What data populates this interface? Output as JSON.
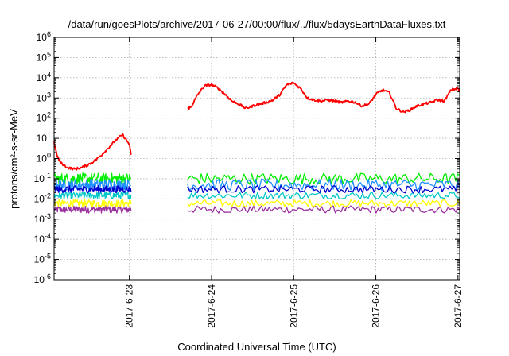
{
  "chart_data": {
    "type": "line",
    "title": "/data/run/goesPlots/archive/2017-06-27/00:00/flux/../flux/5daysEarthDataFluxes.txt",
    "xlabel": "Coordinated Universal Time (UTC)",
    "ylabel": "protons/cm²-s-sr-MeV",
    "yscale": "log",
    "ylim": [
      1e-06,
      1000000.0
    ],
    "xlim": [
      "2017-06-22T02:00",
      "2017-06-27T00:30"
    ],
    "grid": true,
    "data_gap": [
      "2017-06-23T00:30",
      "2017-06-23T17:00"
    ],
    "y_ticks": [
      {
        "base": "10",
        "exp": "-6"
      },
      {
        "base": "10",
        "exp": "-5"
      },
      {
        "base": "10",
        "exp": "-4"
      },
      {
        "base": "10",
        "exp": "-3"
      },
      {
        "base": "10",
        "exp": "-2"
      },
      {
        "base": "10",
        "exp": "-1"
      },
      {
        "base": "10",
        "exp": "0"
      },
      {
        "base": "10",
        "exp": "1"
      },
      {
        "base": "10",
        "exp": "2"
      },
      {
        "base": "10",
        "exp": "3"
      },
      {
        "base": "10",
        "exp": "4"
      },
      {
        "base": "10",
        "exp": "5"
      },
      {
        "base": "10",
        "exp": "6"
      }
    ],
    "x_ticks": [
      "2017-6-23",
      "2017-6-24",
      "2017-6-25",
      "2017-6-26",
      "2017-6-27"
    ],
    "series": [
      {
        "color": "#ff0000",
        "points": [
          [
            "2017-06-22T02:00",
            6
          ],
          [
            "2017-06-22T03:00",
            1.2
          ],
          [
            "2017-06-22T04:00",
            0.6
          ],
          [
            "2017-06-22T06:00",
            0.35
          ],
          [
            "2017-06-22T08:00",
            0.3
          ],
          [
            "2017-06-22T10:00",
            0.35
          ],
          [
            "2017-06-22T12:00",
            0.5
          ],
          [
            "2017-06-22T14:00",
            0.8
          ],
          [
            "2017-06-22T16:00",
            1.6
          ],
          [
            "2017-06-22T18:00",
            3.5
          ],
          [
            "2017-06-22T20:00",
            8
          ],
          [
            "2017-06-22T22:00",
            15
          ],
          [
            "2017-06-23T00:00",
            5
          ],
          [
            "2017-06-23T00:30",
            1.5
          ],
          null,
          [
            "2017-06-23T17:00",
            300
          ],
          [
            "2017-06-23T18:00",
            350
          ],
          [
            "2017-06-23T20:00",
            1500
          ],
          [
            "2017-06-23T22:00",
            4000
          ],
          [
            "2017-06-24T00:00",
            4500
          ],
          [
            "2017-06-24T02:00",
            3000
          ],
          [
            "2017-06-24T04:00",
            1500
          ],
          [
            "2017-06-24T06:00",
            700
          ],
          [
            "2017-06-24T08:00",
            500
          ],
          [
            "2017-06-24T10:00",
            300
          ],
          [
            "2017-06-24T12:00",
            400
          ],
          [
            "2017-06-24T14:00",
            500
          ],
          [
            "2017-06-24T16:00",
            600
          ],
          [
            "2017-06-24T18:00",
            800
          ],
          [
            "2017-06-24T20:00",
            1500
          ],
          [
            "2017-06-24T22:00",
            4500
          ],
          [
            "2017-06-25T00:00",
            5500
          ],
          [
            "2017-06-25T02:00",
            3000
          ],
          [
            "2017-06-25T04:00",
            1000
          ],
          [
            "2017-06-25T06:00",
            800
          ],
          [
            "2017-06-25T08:00",
            700
          ],
          [
            "2017-06-25T10:00",
            800
          ],
          [
            "2017-06-25T12:00",
            700
          ],
          [
            "2017-06-25T14:00",
            600
          ],
          [
            "2017-06-25T16:00",
            700
          ],
          [
            "2017-06-25T18:00",
            600
          ],
          [
            "2017-06-25T20:00",
            400
          ],
          [
            "2017-06-25T22:00",
            500
          ],
          [
            "2017-06-26T00:00",
            1500
          ],
          [
            "2017-06-26T02:00",
            2500
          ],
          [
            "2017-06-26T04:00",
            1800
          ],
          [
            "2017-06-26T06:00",
            300
          ],
          [
            "2017-06-26T08:00",
            200
          ],
          [
            "2017-06-26T10:00",
            250
          ],
          [
            "2017-06-26T12:00",
            400
          ],
          [
            "2017-06-26T14:00",
            500
          ],
          [
            "2017-06-26T16:00",
            600
          ],
          [
            "2017-06-26T18:00",
            800
          ],
          [
            "2017-06-26T20:00",
            700
          ],
          [
            "2017-06-26T22:00",
            2500
          ],
          [
            "2017-06-27T00:00",
            3000
          ],
          [
            "2017-06-27T00:30",
            2000
          ]
        ]
      },
      {
        "color": "#00ee00",
        "points": [
          [
            "2017-06-22T02:00",
            0.1
          ],
          [
            "2017-06-23T00:30",
            0.1
          ],
          null,
          [
            "2017-06-23T17:00",
            0.1
          ],
          [
            "2017-06-27T00:30",
            0.1
          ]
        ]
      },
      {
        "color": "#1e90ff",
        "points": [
          [
            "2017-06-22T02:00",
            0.05
          ],
          [
            "2017-06-23T00:30",
            0.05
          ],
          null,
          [
            "2017-06-23T17:00",
            0.05
          ],
          [
            "2017-06-27T00:30",
            0.05
          ]
        ]
      },
      {
        "color": "#0000cd",
        "points": [
          [
            "2017-06-22T02:00",
            0.03
          ],
          [
            "2017-06-23T00:30",
            0.03
          ],
          null,
          [
            "2017-06-23T17:00",
            0.03
          ],
          [
            "2017-06-27T00:30",
            0.03
          ]
        ]
      },
      {
        "color": "#00c8c8",
        "points": [
          [
            "2017-06-22T02:00",
            0.015
          ],
          [
            "2017-06-23T00:30",
            0.015
          ],
          null,
          [
            "2017-06-23T17:00",
            0.015
          ],
          [
            "2017-06-27T00:30",
            0.015
          ]
        ]
      },
      {
        "color": "#ffff00",
        "points": [
          [
            "2017-06-22T02:00",
            0.006
          ],
          [
            "2017-06-23T00:30",
            0.006
          ],
          null,
          [
            "2017-06-23T17:00",
            0.006
          ],
          [
            "2017-06-27T00:30",
            0.006
          ]
        ]
      },
      {
        "color": "#9b30a0",
        "points": [
          [
            "2017-06-22T02:00",
            0.003
          ],
          [
            "2017-06-23T00:30",
            0.003
          ],
          null,
          [
            "2017-06-23T17:00",
            0.003
          ],
          [
            "2017-06-27T00:30",
            0.003
          ]
        ]
      }
    ]
  }
}
